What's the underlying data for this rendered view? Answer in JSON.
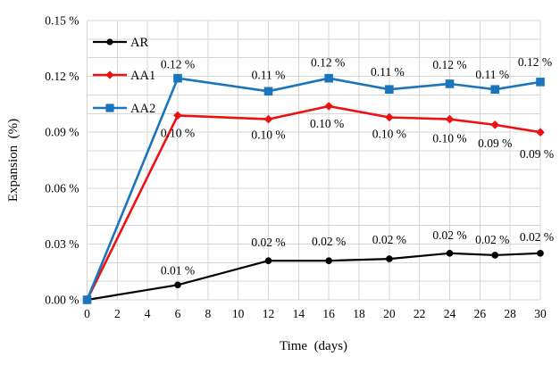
{
  "chart_data": {
    "type": "line",
    "title": "",
    "xlabel": "Time  (days)",
    "ylabel": "Expansion  (%)",
    "xlim": [
      0,
      30
    ],
    "ylim": [
      0,
      0.15
    ],
    "x_tick_step": 2,
    "y_minor_step": 0.01,
    "x_tick_labels": [
      "0",
      "2",
      "4",
      "6",
      "8",
      "10",
      "12",
      "14",
      "16",
      "18",
      "20",
      "22",
      "24",
      "26",
      "28",
      "30"
    ],
    "y_ticks": [
      {
        "v": 0.0,
        "t": "0.00 %"
      },
      {
        "v": 0.03,
        "t": "0.03 %"
      },
      {
        "v": 0.06,
        "t": "0.06 %"
      },
      {
        "v": 0.09,
        "t": "0.09 %"
      },
      {
        "v": 0.12,
        "t": "0.12 %"
      },
      {
        "v": 0.15,
        "t": "0.15 %"
      }
    ],
    "x": [
      0,
      6,
      12,
      16,
      20,
      24,
      27,
      30
    ],
    "series": [
      {
        "name": "AR",
        "color": "#000000",
        "marker": "circle",
        "line_width": 2.2,
        "values": [
          0,
          0.008,
          0.021,
          0.021,
          0.022,
          0.025,
          0.024,
          0.025
        ],
        "point_labels": [
          null,
          {
            "t": "0.01 %",
            "dx": 0,
            "dy": -12
          },
          {
            "t": "0.02 %",
            "dx": 0,
            "dy": -16
          },
          {
            "t": "0.02 %",
            "dx": 0,
            "dy": -17
          },
          {
            "t": "0.02 %",
            "dx": 0,
            "dy": -17
          },
          {
            "t": "0.02 %",
            "dx": 0,
            "dy": -16
          },
          {
            "t": "0.02 %",
            "dx": -3,
            "dy": -13
          },
          {
            "t": "0.02 %",
            "dx": -4,
            "dy": -14
          }
        ]
      },
      {
        "name": "AA1",
        "color": "#ee1111",
        "marker": "diamond",
        "line_width": 2.6,
        "values": [
          0,
          0.099,
          0.097,
          0.104,
          0.098,
          0.097,
          0.094,
          0.09
        ],
        "point_labels": [
          null,
          {
            "t": "0.10 %",
            "dx": 0,
            "dy": 24
          },
          {
            "t": "0.10 %",
            "dx": 0,
            "dy": 22
          },
          {
            "t": "0.10 %",
            "dx": -2,
            "dy": 24
          },
          {
            "t": "0.10 %",
            "dx": 0,
            "dy": 23
          },
          {
            "t": "0.10 %",
            "dx": 0,
            "dy": 26
          },
          {
            "t": "0.09 %",
            "dx": 0,
            "dy": 25
          },
          {
            "t": "0.09 %",
            "dx": -4,
            "dy": 29
          }
        ]
      },
      {
        "name": "AA2",
        "color": "#1b75bc",
        "marker": "square",
        "line_width": 2.6,
        "values": [
          0,
          0.119,
          0.112,
          0.119,
          0.113,
          0.116,
          0.113,
          0.117
        ],
        "point_labels": [
          null,
          {
            "t": "0.12 %",
            "dx": 0,
            "dy": -11
          },
          {
            "t": "0.11 %",
            "dx": 0,
            "dy": -14
          },
          {
            "t": "0.12 %",
            "dx": -1,
            "dy": -13
          },
          {
            "t": "0.11 %",
            "dx": -2,
            "dy": -15
          },
          {
            "t": "0.12 %",
            "dx": 0,
            "dy": -17
          },
          {
            "t": "0.11 %",
            "dx": -3,
            "dy": -12
          },
          {
            "t": "0.12 %",
            "dx": -6,
            "dy": -18
          }
        ]
      }
    ],
    "legend": {
      "items": [
        "AR",
        "AA1",
        "AA2"
      ],
      "position": "top-left-inside"
    },
    "grid": true,
    "grid_color": "#d6d6d6",
    "text_color": "#000000",
    "background": "#ffffff"
  }
}
